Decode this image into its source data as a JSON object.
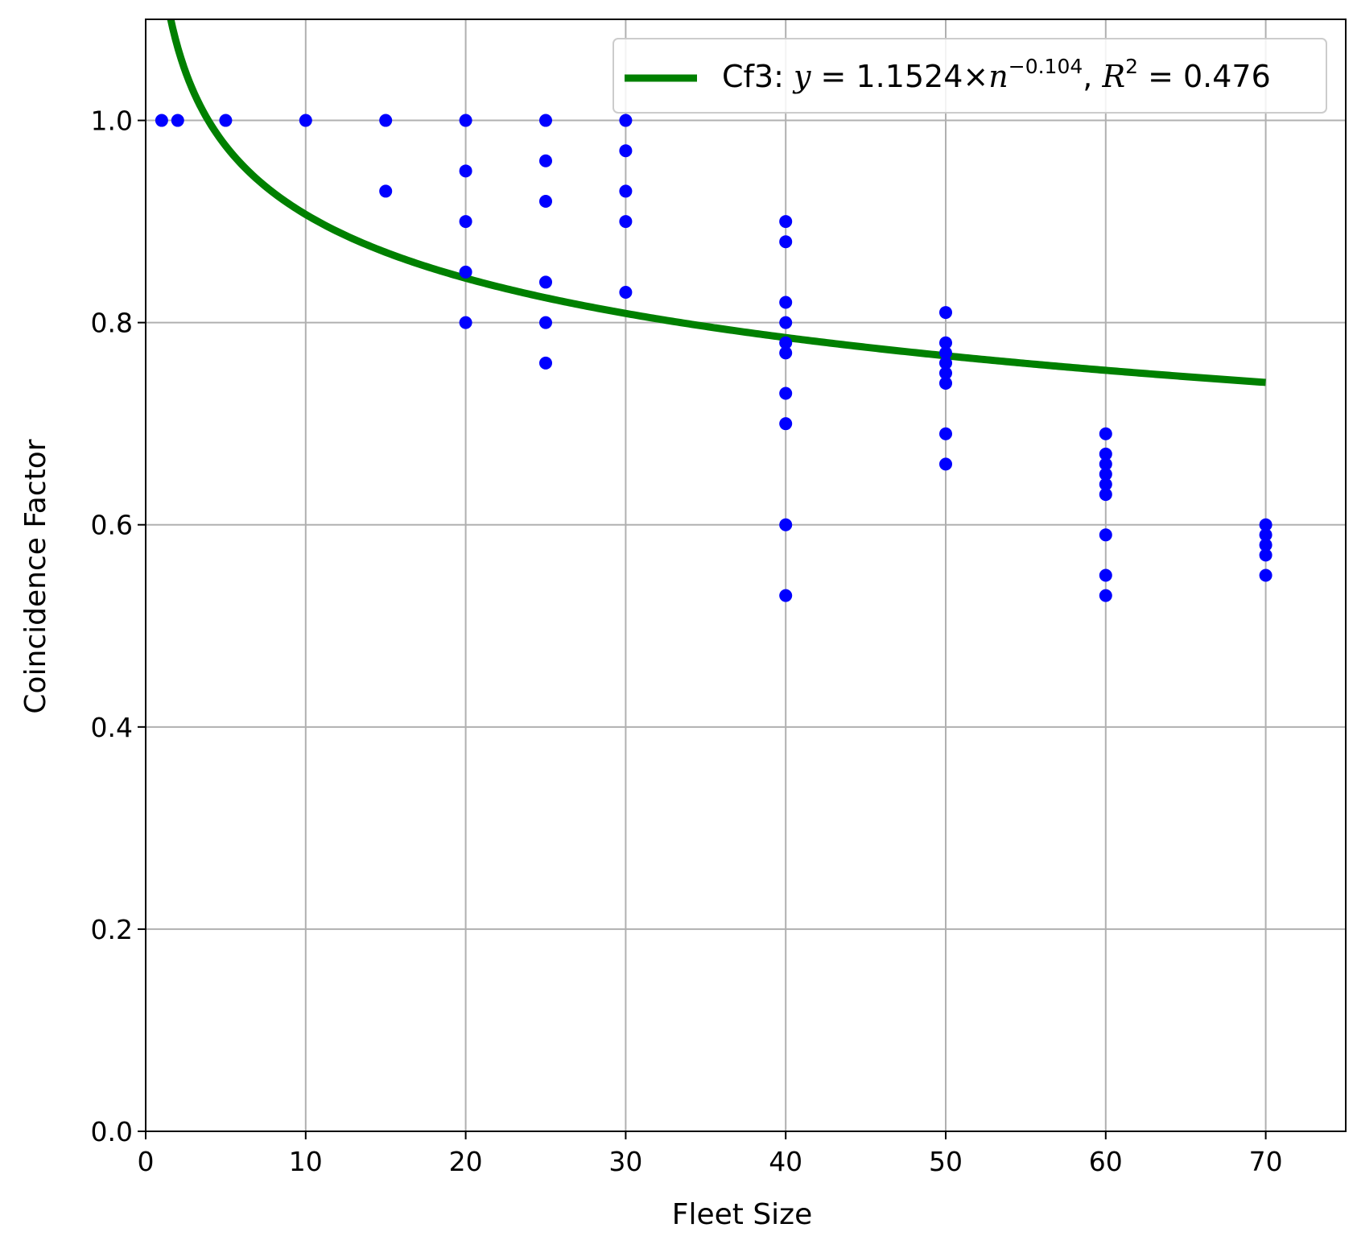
{
  "chart_data": {
    "type": "scatter",
    "xlabel": "Fleet Size",
    "ylabel": "Coincidence Factor",
    "xlim": [
      0,
      75
    ],
    "ylim": [
      0.0,
      1.1
    ],
    "xticks": [
      0,
      10,
      20,
      30,
      40,
      50,
      60,
      70
    ],
    "yticks": [
      0.0,
      0.2,
      0.4,
      0.6,
      0.8,
      1.0
    ],
    "xtick_labels": [
      "0",
      "10",
      "20",
      "30",
      "40",
      "50",
      "60",
      "70"
    ],
    "ytick_labels": [
      "0.0",
      "0.2",
      "0.4",
      "0.6",
      "0.8",
      "1.0"
    ],
    "grid": true,
    "legend_position": "top-right",
    "scatter": {
      "color": "#0000ff",
      "points": [
        {
          "x": 1,
          "y": 1.0
        },
        {
          "x": 2,
          "y": 1.0
        },
        {
          "x": 5,
          "y": 1.0
        },
        {
          "x": 10,
          "y": 1.0
        },
        {
          "x": 15,
          "y": 1.0
        },
        {
          "x": 15,
          "y": 0.93
        },
        {
          "x": 20,
          "y": 1.0
        },
        {
          "x": 20,
          "y": 0.95
        },
        {
          "x": 20,
          "y": 0.9
        },
        {
          "x": 20,
          "y": 0.85
        },
        {
          "x": 20,
          "y": 0.8
        },
        {
          "x": 25,
          "y": 1.0
        },
        {
          "x": 25,
          "y": 0.96
        },
        {
          "x": 25,
          "y": 0.92
        },
        {
          "x": 25,
          "y": 0.84
        },
        {
          "x": 25,
          "y": 0.8
        },
        {
          "x": 25,
          "y": 0.76
        },
        {
          "x": 30,
          "y": 1.0
        },
        {
          "x": 30,
          "y": 0.97
        },
        {
          "x": 30,
          "y": 0.93
        },
        {
          "x": 30,
          "y": 0.9
        },
        {
          "x": 30,
          "y": 0.83
        },
        {
          "x": 40,
          "y": 0.9
        },
        {
          "x": 40,
          "y": 0.88
        },
        {
          "x": 40,
          "y": 0.82
        },
        {
          "x": 40,
          "y": 0.8
        },
        {
          "x": 40,
          "y": 0.78
        },
        {
          "x": 40,
          "y": 0.77
        },
        {
          "x": 40,
          "y": 0.73
        },
        {
          "x": 40,
          "y": 0.7
        },
        {
          "x": 40,
          "y": 0.6
        },
        {
          "x": 40,
          "y": 0.53
        },
        {
          "x": 50,
          "y": 0.81
        },
        {
          "x": 50,
          "y": 0.78
        },
        {
          "x": 50,
          "y": 0.77
        },
        {
          "x": 50,
          "y": 0.76
        },
        {
          "x": 50,
          "y": 0.75
        },
        {
          "x": 50,
          "y": 0.74
        },
        {
          "x": 50,
          "y": 0.69
        },
        {
          "x": 50,
          "y": 0.66
        },
        {
          "x": 60,
          "y": 0.69
        },
        {
          "x": 60,
          "y": 0.67
        },
        {
          "x": 60,
          "y": 0.66
        },
        {
          "x": 60,
          "y": 0.65
        },
        {
          "x": 60,
          "y": 0.64
        },
        {
          "x": 60,
          "y": 0.63
        },
        {
          "x": 60,
          "y": 0.59
        },
        {
          "x": 60,
          "y": 0.55
        },
        {
          "x": 60,
          "y": 0.53
        },
        {
          "x": 70,
          "y": 0.6
        },
        {
          "x": 70,
          "y": 0.59
        },
        {
          "x": 70,
          "y": 0.58
        },
        {
          "x": 70,
          "y": 0.57
        },
        {
          "x": 70,
          "y": 0.55
        }
      ]
    },
    "fit": {
      "name_prefix": "Cf3:",
      "equation_lhs": "y",
      "equation_eq": " = 1.1524×",
      "equation_base": "n",
      "equation_exponent": "−0.104",
      "r2_symbol": "R",
      "r2_exp": "2",
      "r2_value": " = 0.476",
      "a": 1.1524,
      "b": -0.104,
      "x_range": [
        1,
        70
      ],
      "color": "#008000"
    }
  }
}
